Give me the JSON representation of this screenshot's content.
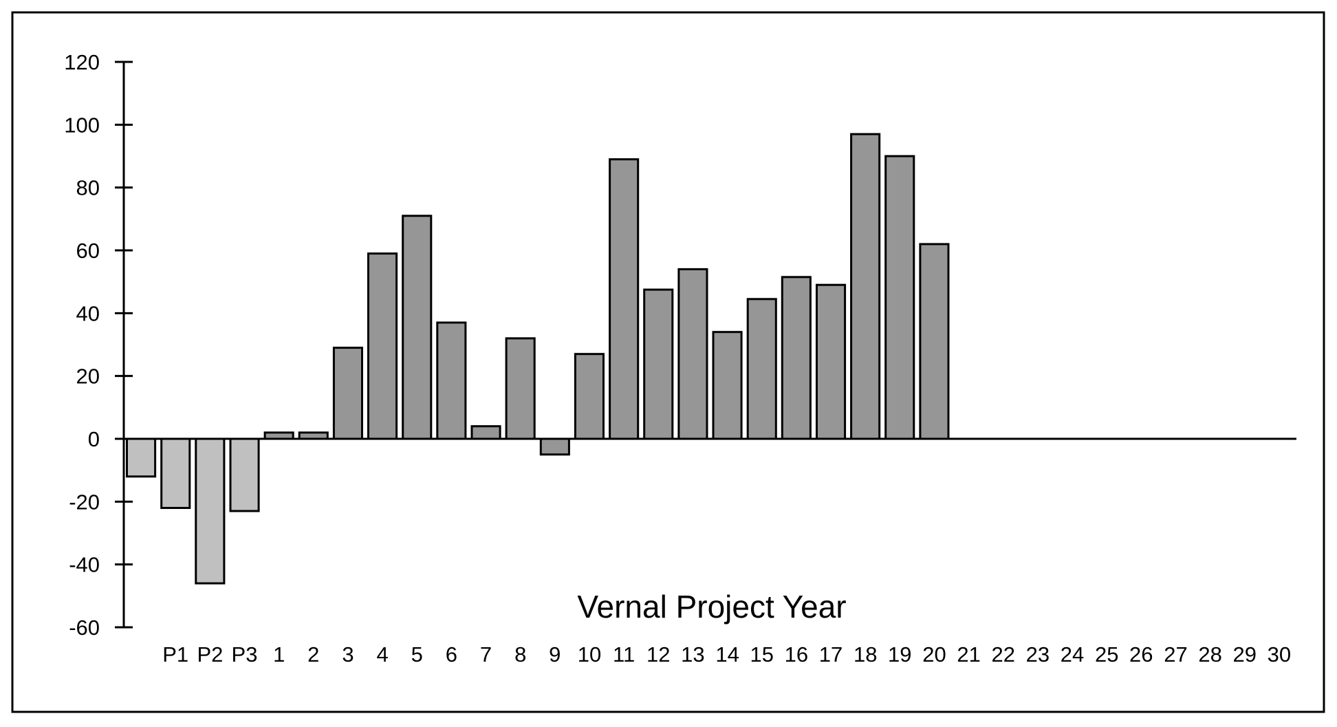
{
  "chart_data": {
    "type": "bar",
    "xlabel": "Vernal Project Year",
    "ylabel": "",
    "ylim": [
      -60,
      120
    ],
    "yticks": [
      "120",
      "100",
      "80",
      "60",
      "40",
      "20",
      "0",
      "-20",
      "-40",
      "-60"
    ],
    "categories": [
      "",
      "P1",
      "P2",
      "P3",
      "1",
      "2",
      "3",
      "4",
      "5",
      "6",
      "7",
      "8",
      "9",
      "10",
      "11",
      "12",
      "13",
      "14",
      "15",
      "16",
      "17",
      "18",
      "19",
      "20",
      "21",
      "22",
      "23",
      "24",
      "25",
      "26",
      "27",
      "28",
      "29",
      "30"
    ],
    "values": [
      -12,
      -22,
      -46,
      -23,
      2,
      2,
      29,
      59,
      71,
      37,
      4,
      32,
      -5,
      27,
      89,
      47.5,
      54,
      34,
      44.5,
      51.5,
      49,
      97,
      90,
      62,
      null,
      null,
      null,
      null,
      null,
      null,
      null,
      null,
      null,
      null
    ],
    "grid": false,
    "legend": "none",
    "colors": {
      "pre_project_bar": "#c0c0c0",
      "project_bar": "#969696",
      "outline": "#000000"
    }
  }
}
